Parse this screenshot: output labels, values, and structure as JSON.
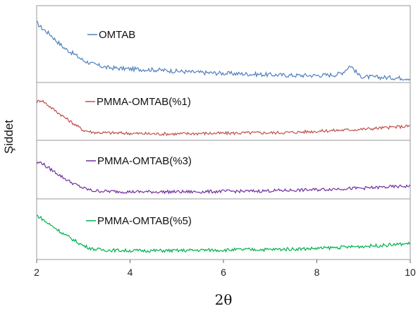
{
  "chart_data": {
    "type": "line",
    "xlabel": "2θ",
    "ylabel": "Şiddet",
    "xlim": [
      2,
      10
    ],
    "xticks": [
      "2",
      "4",
      "6",
      "8",
      "10"
    ],
    "panels": [
      {
        "name": "OMTAB",
        "color": "#4F81BD",
        "x": [
          2.0,
          2.1,
          2.2,
          2.3,
          2.4,
          2.5,
          2.6,
          2.8,
          3.0,
          3.2,
          3.5,
          4.0,
          4.5,
          5.0,
          5.5,
          6.0,
          6.5,
          7.0,
          7.5,
          8.0,
          8.4,
          8.55,
          8.65,
          8.72,
          8.8,
          8.9,
          9.0,
          9.5,
          10.0
        ],
        "y": [
          0.8,
          0.73,
          0.68,
          0.63,
          0.56,
          0.5,
          0.44,
          0.36,
          0.27,
          0.22,
          0.17,
          0.15,
          0.14,
          0.12,
          0.1,
          0.09,
          0.08,
          0.07,
          0.06,
          0.06,
          0.07,
          0.1,
          0.16,
          0.2,
          0.14,
          0.06,
          0.04,
          0.03,
          0.02
        ]
      },
      {
        "name": "PMMA-OMTAB(%1)",
        "color": "#C0504D",
        "x": [
          2.0,
          2.1,
          2.2,
          2.3,
          2.5,
          2.7,
          2.9,
          3.0,
          3.2,
          3.5,
          4.0,
          4.5,
          5.0,
          5.5,
          6.0,
          6.5,
          7.0,
          7.5,
          8.0,
          8.5,
          9.0,
          9.5,
          10.0
        ],
        "y": [
          0.68,
          0.72,
          0.65,
          0.58,
          0.45,
          0.32,
          0.2,
          0.14,
          0.1,
          0.09,
          0.08,
          0.07,
          0.07,
          0.08,
          0.08,
          0.09,
          0.09,
          0.1,
          0.12,
          0.14,
          0.16,
          0.19,
          0.22
        ]
      },
      {
        "name": "PMMA-OMTAB(%3)",
        "color": "#7030A0",
        "x": [
          2.0,
          2.1,
          2.2,
          2.4,
          2.6,
          2.8,
          3.0,
          3.2,
          3.5,
          4.0,
          4.5,
          5.0,
          5.5,
          6.0,
          6.5,
          7.0,
          7.5,
          8.0,
          8.5,
          9.0,
          9.5,
          10.0
        ],
        "y": [
          0.62,
          0.64,
          0.56,
          0.45,
          0.33,
          0.23,
          0.15,
          0.1,
          0.09,
          0.08,
          0.08,
          0.08,
          0.08,
          0.09,
          0.09,
          0.1,
          0.11,
          0.12,
          0.14,
          0.15,
          0.17,
          0.19
        ]
      },
      {
        "name": "PMMA-OMTAB(%5)",
        "color": "#00B050",
        "x": [
          2.0,
          2.1,
          2.2,
          2.4,
          2.6,
          2.8,
          3.0,
          3.2,
          3.5,
          4.0,
          4.5,
          5.0,
          5.5,
          6.0,
          6.5,
          7.0,
          7.5,
          8.0,
          8.5,
          9.0,
          9.5,
          10.0
        ],
        "y": [
          0.75,
          0.7,
          0.63,
          0.52,
          0.4,
          0.3,
          0.2,
          0.14,
          0.12,
          0.11,
          0.11,
          0.11,
          0.12,
          0.12,
          0.13,
          0.13,
          0.14,
          0.15,
          0.17,
          0.19,
          0.21,
          0.24
        ]
      }
    ]
  }
}
